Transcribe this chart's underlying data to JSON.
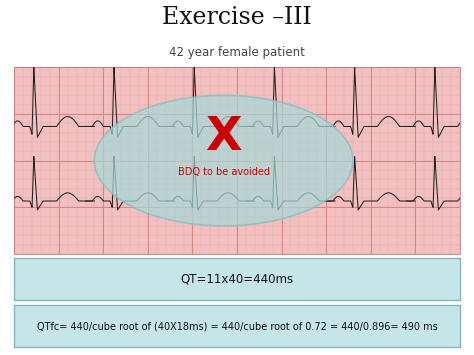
{
  "title": "Exercise –III",
  "subtitle": "42 year female patient",
  "title_fontsize": 17,
  "subtitle_fontsize": 8.5,
  "ecg_bg_color": "#f2c0c0",
  "ecg_grid_minor_color": "#e8a8a8",
  "ecg_grid_major_color": "#d88888",
  "ellipse_color": "#a8d8d8",
  "ellipse_alpha": 0.72,
  "ellipse_edge_color": "#80bfbf",
  "x_label": "X",
  "x_label_color": "#cc0000",
  "bdq_text": "BDQ to be avoided",
  "bdq_text_color": "#cc0000",
  "qt_box_text": "QT=11x40=440ms",
  "qtfc_box_text": "QTfc= 440/cube root of (40X18ms) = 440/cube root of 0.72 = 440/0.896= 490 ms",
  "box_bg_color": "#c5e5e8",
  "box_border_color": "#80b8bb",
  "ecg_line_color": "#222222",
  "fig_bg_color": "#ffffff"
}
